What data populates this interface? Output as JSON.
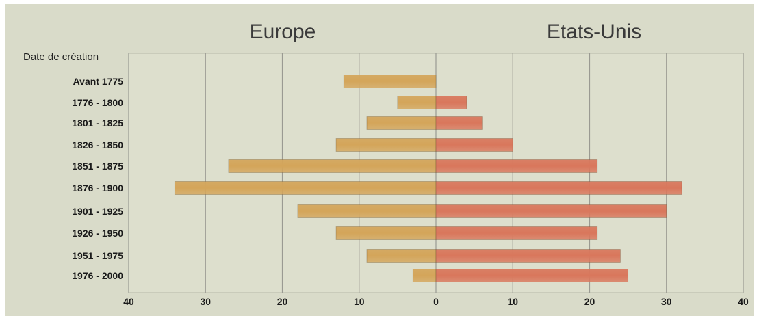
{
  "chart_data": {
    "type": "bar",
    "orientation": "horizontal-butterfly",
    "titles": {
      "left": "Europe",
      "right": "Etats-Unis"
    },
    "category_header": "Date de création",
    "categories": [
      "Avant 1775",
      "1776 - 1800",
      "1801 - 1825",
      "1826 - 1850",
      "1851 - 1875",
      "1876 - 1900",
      "1901 - 1925",
      "1926 - 1950",
      "1951 - 1975",
      "1976 - 2000"
    ],
    "series": [
      {
        "name": "Europe",
        "side": "left",
        "color": "#d4a55a",
        "values": [
          12,
          5,
          9,
          13,
          27,
          34,
          18,
          13,
          9,
          3
        ]
      },
      {
        "name": "Etats-Unis",
        "side": "right",
        "color": "#d9775c",
        "values": [
          0,
          4,
          6,
          10,
          21,
          32,
          30,
          21,
          24,
          25
        ]
      }
    ],
    "xlim": [
      -40,
      40
    ],
    "xticks": [
      -40,
      -30,
      -20,
      -10,
      0,
      10,
      20,
      30,
      40
    ],
    "xtick_labels": [
      "40",
      "30",
      "20",
      "10",
      "0",
      "10",
      "20",
      "30",
      "40"
    ],
    "grid": true,
    "colors": {
      "background": "#d9dbc9",
      "plot_background": "#dddfcd",
      "grid": "#9a9a92"
    }
  }
}
